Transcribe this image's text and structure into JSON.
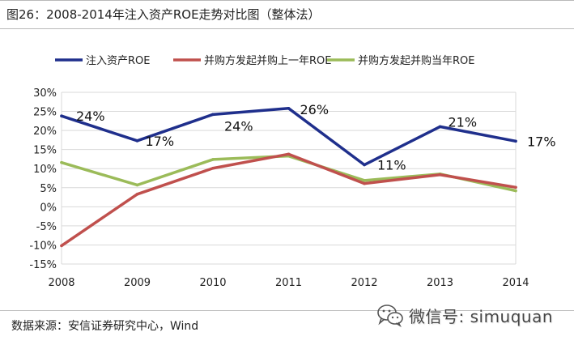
{
  "title": "图26：2008-2014年注入资产ROE走势对比图（整体法）",
  "source": "数据来源：安信证券研究中心，Wind",
  "watermark": {
    "icon": "wechat-icon",
    "text": "微信号: simuquan"
  },
  "colors": {
    "series_blue": "#1f2f8c",
    "series_red": "#c0504d",
    "series_green": "#9bbb59",
    "grid": "#d9d9d9",
    "axis_text": "#222222"
  },
  "chart_data": {
    "type": "line",
    "title": "",
    "xlabel": "",
    "ylabel": "",
    "x": [
      "2008",
      "2009",
      "2010",
      "2011",
      "2012",
      "2013",
      "2014"
    ],
    "ylim": [
      -15,
      30
    ],
    "yticks": [
      -15,
      -10,
      -5,
      0,
      5,
      10,
      15,
      20,
      25,
      30
    ],
    "ytick_labels": [
      "-15%",
      "-10%",
      "-5%",
      "0%",
      "5%",
      "10%",
      "15%",
      "20%",
      "25%",
      "30%"
    ],
    "grid": true,
    "legend_position": "top",
    "series": [
      {
        "name": "注入资产ROE",
        "color": "#1f2f8c",
        "values": [
          23.8,
          17.3,
          24.2,
          25.8,
          11.0,
          21.0,
          17.2
        ],
        "data_labels": [
          "24%",
          "17%",
          "24%",
          "26%",
          "11%",
          "21%",
          "17%"
        ]
      },
      {
        "name": "并购方发起并购上一年ROE",
        "color": "#c0504d",
        "values": [
          -10.2,
          3.3,
          10.1,
          13.8,
          6.1,
          8.4,
          5.1
        ]
      },
      {
        "name": "并购方发起并购当年ROE",
        "color": "#9bbb59",
        "values": [
          11.6,
          5.7,
          12.4,
          13.3,
          6.9,
          8.6,
          4.2
        ]
      }
    ]
  }
}
